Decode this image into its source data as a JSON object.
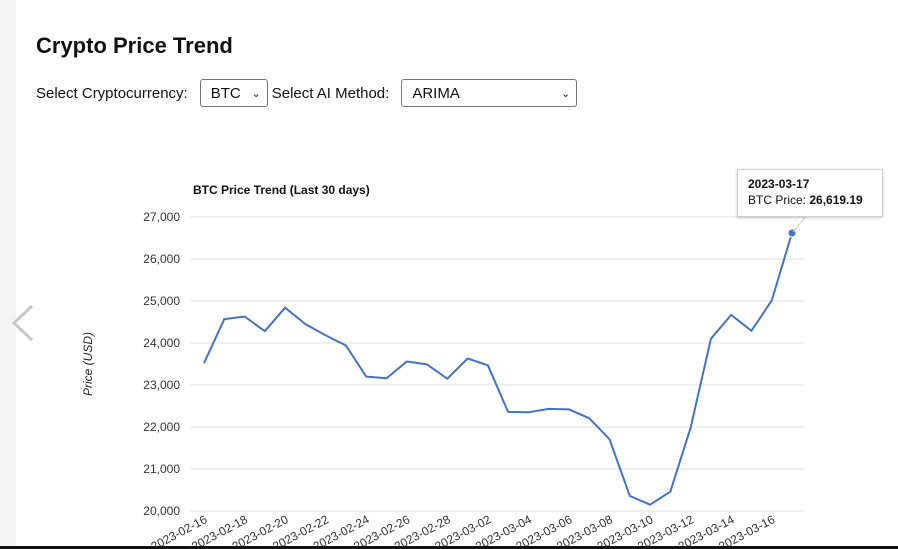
{
  "page": {
    "title": "Crypto Price Trend"
  },
  "controls": {
    "crypto_label": "Select Cryptocurrency:",
    "crypto_value": "BTC",
    "method_label": "Select AI Method:",
    "method_value": "ARIMA"
  },
  "icons": {
    "prev": "chevron-left-icon",
    "dropdown": "chevron-down-icon"
  },
  "tooltip": {
    "date": "2023-03-17",
    "label": "BTC Price: ",
    "value": "26,619.19"
  },
  "chart_data": {
    "type": "line",
    "title": "BTC Price Trend (Last 30 days)",
    "ylabel": "Price (USD)",
    "xlabel": "",
    "ylim": [
      20000,
      27000
    ],
    "yticks": [
      20000,
      21000,
      22000,
      23000,
      24000,
      25000,
      26000,
      27000
    ],
    "ytick_labels": [
      "20,000",
      "21,000",
      "22,000",
      "23,000",
      "24,000",
      "25,000",
      "26,000",
      "27,000"
    ],
    "x": [
      "2023-02-16",
      "2023-02-17",
      "2023-02-18",
      "2023-02-19",
      "2023-02-20",
      "2023-02-21",
      "2023-02-22",
      "2023-02-23",
      "2023-02-24",
      "2023-02-25",
      "2023-02-26",
      "2023-02-27",
      "2023-02-28",
      "2023-03-01",
      "2023-03-02",
      "2023-03-03",
      "2023-03-04",
      "2023-03-05",
      "2023-03-06",
      "2023-03-07",
      "2023-03-08",
      "2023-03-09",
      "2023-03-10",
      "2023-03-11",
      "2023-03-12",
      "2023-03-13",
      "2023-03-14",
      "2023-03-15",
      "2023-03-16",
      "2023-03-17"
    ],
    "xtick_labels": [
      "2023-02-16",
      "2023-02-18",
      "2023-02-20",
      "2023-02-22",
      "2023-02-24",
      "2023-02-26",
      "2023-02-28",
      "2023-03-02",
      "2023-03-04",
      "2023-03-06",
      "2023-03-08",
      "2023-03-10",
      "2023-03-12",
      "2023-03-14",
      "2023-03-16"
    ],
    "series": [
      {
        "color": "#4472c4",
        "values": [
          23520,
          24570,
          24630,
          24280,
          24840,
          24450,
          24180,
          23940,
          23200,
          23160,
          23560,
          23490,
          23150,
          23630,
          23470,
          22360,
          22350,
          22430,
          22420,
          22210,
          21710,
          20360,
          20150,
          20460,
          21980,
          24100,
          24670,
          24290,
          25010,
          26619.19
        ]
      }
    ],
    "highlighted_point": 29,
    "grid": true,
    "legend": false
  }
}
